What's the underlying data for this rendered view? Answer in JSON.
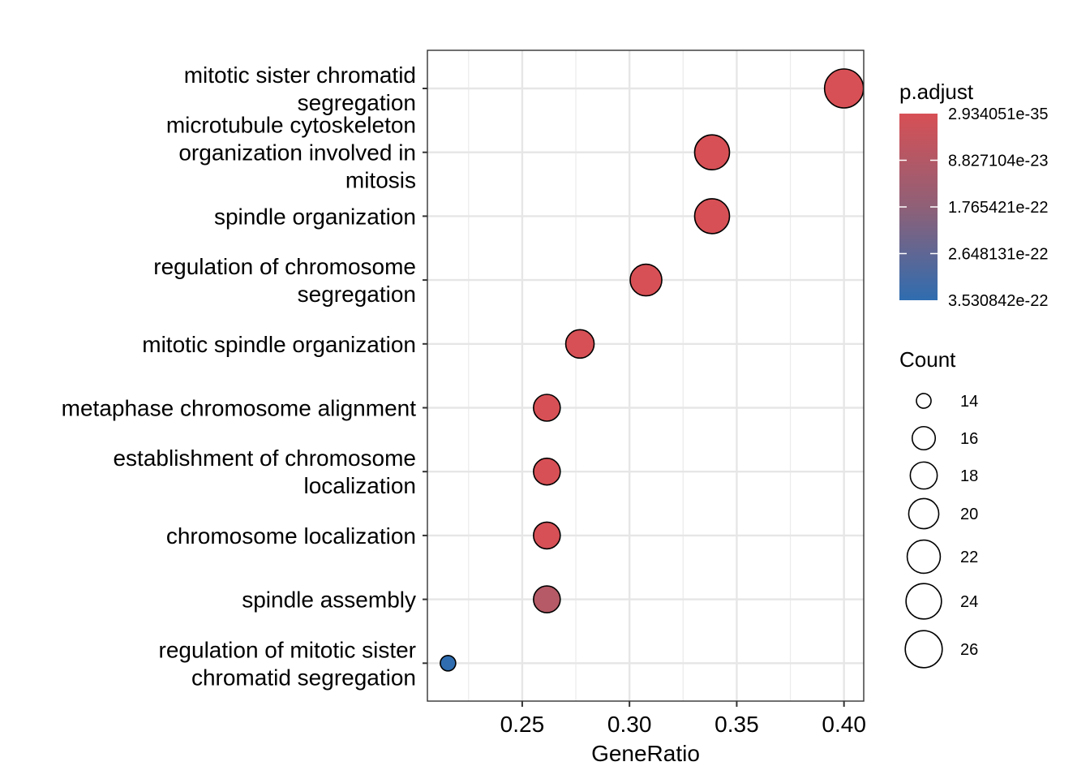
{
  "chart_data": {
    "type": "scatter",
    "subtype": "dot-plot",
    "title": "",
    "xlabel": "GeneRatio",
    "ylabel": "",
    "xlim": [
      0.2058,
      0.4092
    ],
    "xticks": [
      0.25,
      0.3,
      0.35,
      0.4
    ],
    "xtick_labels": [
      "0.25",
      "0.30",
      "0.35",
      "0.40"
    ],
    "grid": true,
    "categories": [
      [
        "mitotic sister chromatid",
        "segregation"
      ],
      [
        "microtubule cytoskeleton",
        "organization involved in",
        "mitosis"
      ],
      [
        "spindle organization"
      ],
      [
        "regulation of chromosome",
        "segregation"
      ],
      [
        "mitotic spindle organization"
      ],
      [
        "metaphase chromosome alignment"
      ],
      [
        "establishment of chromosome",
        "localization"
      ],
      [
        "chromosome localization"
      ],
      [
        "spindle assembly"
      ],
      [
        "regulation of mitotic sister",
        "chromatid segregation"
      ]
    ],
    "points": [
      {
        "term": "mitotic sister chromatid segregation",
        "gene_ratio": 0.4,
        "count": 26,
        "p_adjust": 2.934051e-35,
        "color": "#d75055"
      },
      {
        "term": "microtubule cytoskeleton organization involved in mitosis",
        "gene_ratio": 0.3385,
        "count": 22,
        "p_adjust": 1e-30,
        "color": "#d75055"
      },
      {
        "term": "spindle organization",
        "gene_ratio": 0.3385,
        "count": 22,
        "p_adjust": 1e-30,
        "color": "#d75055"
      },
      {
        "term": "regulation of chromosome segregation",
        "gene_ratio": 0.3077,
        "count": 20,
        "p_adjust": 1e-28,
        "color": "#d75055"
      },
      {
        "term": "mitotic spindle organization",
        "gene_ratio": 0.2769,
        "count": 18,
        "p_adjust": 1e-26,
        "color": "#d75055"
      },
      {
        "term": "metaphase chromosome alignment",
        "gene_ratio": 0.2615,
        "count": 17,
        "p_adjust": 1e-25,
        "color": "#d75055"
      },
      {
        "term": "establishment of chromosome localization",
        "gene_ratio": 0.2615,
        "count": 17,
        "p_adjust": 1e-24,
        "color": "#d75055"
      },
      {
        "term": "chromosome localization",
        "gene_ratio": 0.2615,
        "count": 17,
        "p_adjust": 1e-24,
        "color": "#d65056"
      },
      {
        "term": "spindle assembly",
        "gene_ratio": 0.2615,
        "count": 17,
        "p_adjust": 8.5e-23,
        "color": "#b55a66"
      },
      {
        "term": "regulation of mitotic sister chromatid segregation",
        "gene_ratio": 0.2154,
        "count": 14,
        "p_adjust": 3.530842e-22,
        "color": "#2f6db0"
      }
    ],
    "legend_color": {
      "title": "p.adjust",
      "placement": "right",
      "labels": [
        "2.934051e-35",
        "8.827104e-23",
        "1.765421e-22",
        "2.648131e-22",
        "3.530842e-22"
      ],
      "low_color": "#d75055",
      "high_color": "#2f6db0"
    },
    "legend_size": {
      "title": "Count",
      "placement": "right",
      "values": [
        14,
        16,
        18,
        20,
        22,
        24,
        26
      ],
      "labels": [
        "14",
        "16",
        "18",
        "20",
        "22",
        "24",
        "26"
      ]
    }
  }
}
